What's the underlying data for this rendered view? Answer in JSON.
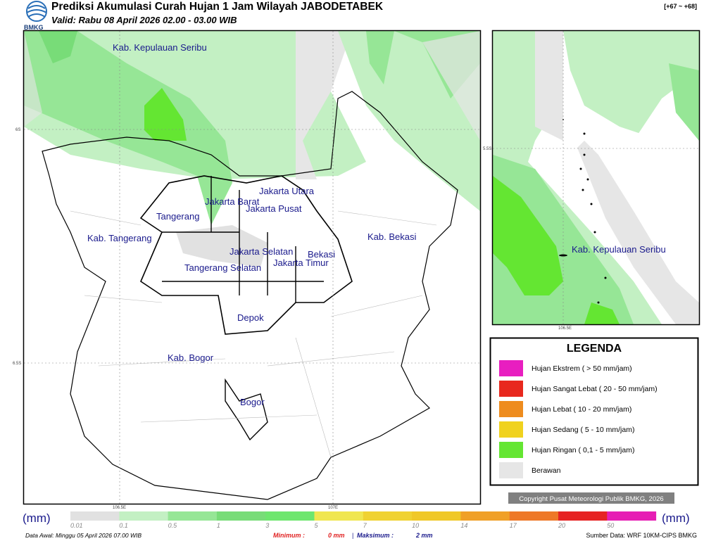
{
  "header": {
    "logo": "BMKG",
    "title": "Prediksi Akumulasi Curah Hujan 1 Jam Wilayah JABODETABEK",
    "valid": "Valid: Rabu 08 April 2026 02.00 - 03.00 WIB",
    "step": "[+67 ~ +68]"
  },
  "map": {
    "lat_ticks": [
      "6S",
      "6.5S"
    ],
    "lon_ticks": [
      "106.5E",
      "107E"
    ],
    "regions": [
      "Kab. Kepulauan Seribu",
      "Jakarta Utara",
      "Jakarta Barat",
      "Jakarta Pusat",
      "Tangerang",
      "Kab. Tangerang",
      "Jakarta Selatan",
      "Tangerang Selatan",
      "Jakarta Timur",
      "Bekasi",
      "Kab. Bekasi",
      "Depok",
      "Kab. Bogor",
      "Bogor"
    ]
  },
  "inset": {
    "lat_tick": "5.5S",
    "lon_tick": "106.5E",
    "region": "Kab. Kepulauan Seribu"
  },
  "legend": {
    "title": "LEGENDA",
    "items": [
      {
        "label": "Hujan Ekstrem ( > 50 mm/jam)",
        "color": "#e81ec0"
      },
      {
        "label": "Hujan Sangat Lebat ( 20 - 50 mm/jam)",
        "color": "#e8281e"
      },
      {
        "label": "Hujan Lebat ( 10 - 20 mm/jam)",
        "color": "#ee8c1e"
      },
      {
        "label": "Hujan Sedang ( 5 - 10 mm/jam)",
        "color": "#f0d21e"
      },
      {
        "label": "Hujan Ringan ( 0,1 - 5 mm/jam)",
        "color": "#64e632"
      },
      {
        "label": "Berawan",
        "color": "#e6e6e6"
      }
    ]
  },
  "copyright": "Copyright Pusat Meteorologi Publik BMKG, 2026",
  "colorbar": {
    "unit": "(mm)",
    "ticks": [
      0.01,
      0.1,
      0.5,
      1,
      3,
      5,
      7,
      10,
      14,
      17,
      20,
      50
    ],
    "colors": [
      "#e1e1e1",
      "#c3f0c3",
      "#96e696",
      "#78dc78",
      "#6ee66e",
      "#f0e650",
      "#f0d232",
      "#f0c828",
      "#f0a028",
      "#ee7828",
      "#e62323",
      "#e61eb4"
    ]
  },
  "footer": {
    "data_awal": "Data Awal: Minggu 05 April 2026 07.00 WIB",
    "min_label": "Minimum :",
    "min_value": "0 mm",
    "separator": "|",
    "max_label": "Maksimum :",
    "max_value": "2 mm",
    "source": "Sumber Data: WRF 10KM-CIPS BMKG"
  }
}
